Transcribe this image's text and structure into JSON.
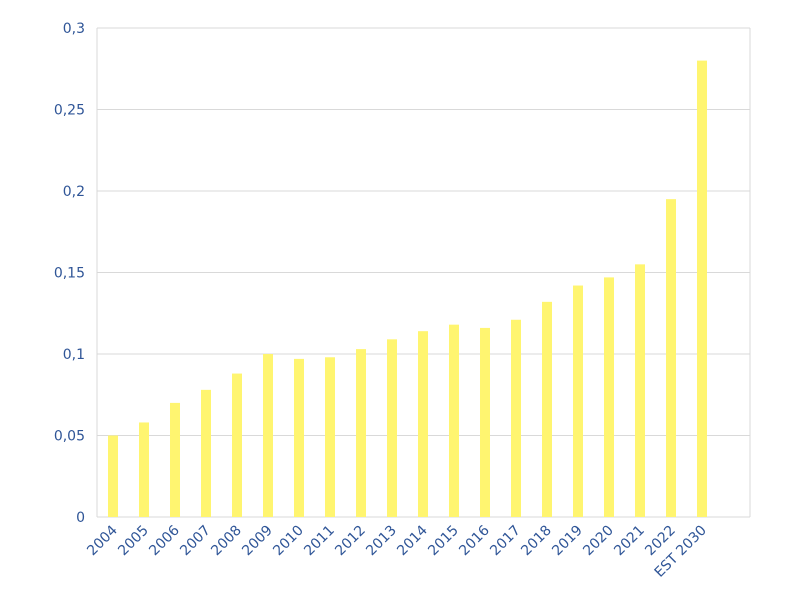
{
  "chart_data": {
    "type": "bar",
    "categories": [
      "2004",
      "2005",
      "2006",
      "2007",
      "2008",
      "2009",
      "2010",
      "2011",
      "2012",
      "2013",
      "2014",
      "2015",
      "2016",
      "2017",
      "2018",
      "2019",
      "2020",
      "2021",
      "2022",
      "EST 2030"
    ],
    "values": [
      0.05,
      0.058,
      0.07,
      0.078,
      0.088,
      0.1,
      0.097,
      0.098,
      0.103,
      0.109,
      0.114,
      0.118,
      0.116,
      0.121,
      0.132,
      0.142,
      0.147,
      0.155,
      0.195,
      0.28
    ],
    "yticks": [
      "0",
      "0,05",
      "0,1",
      "0,15",
      "0,2",
      "0,25",
      "0,3"
    ],
    "ylim": [
      0,
      0.3
    ],
    "title": "",
    "xlabel": "",
    "ylabel": "",
    "grid": true,
    "legend": "none",
    "colors": {
      "bar": "#fff570",
      "tick_text": "#2f5597",
      "grid": "#d9d9d9"
    }
  }
}
